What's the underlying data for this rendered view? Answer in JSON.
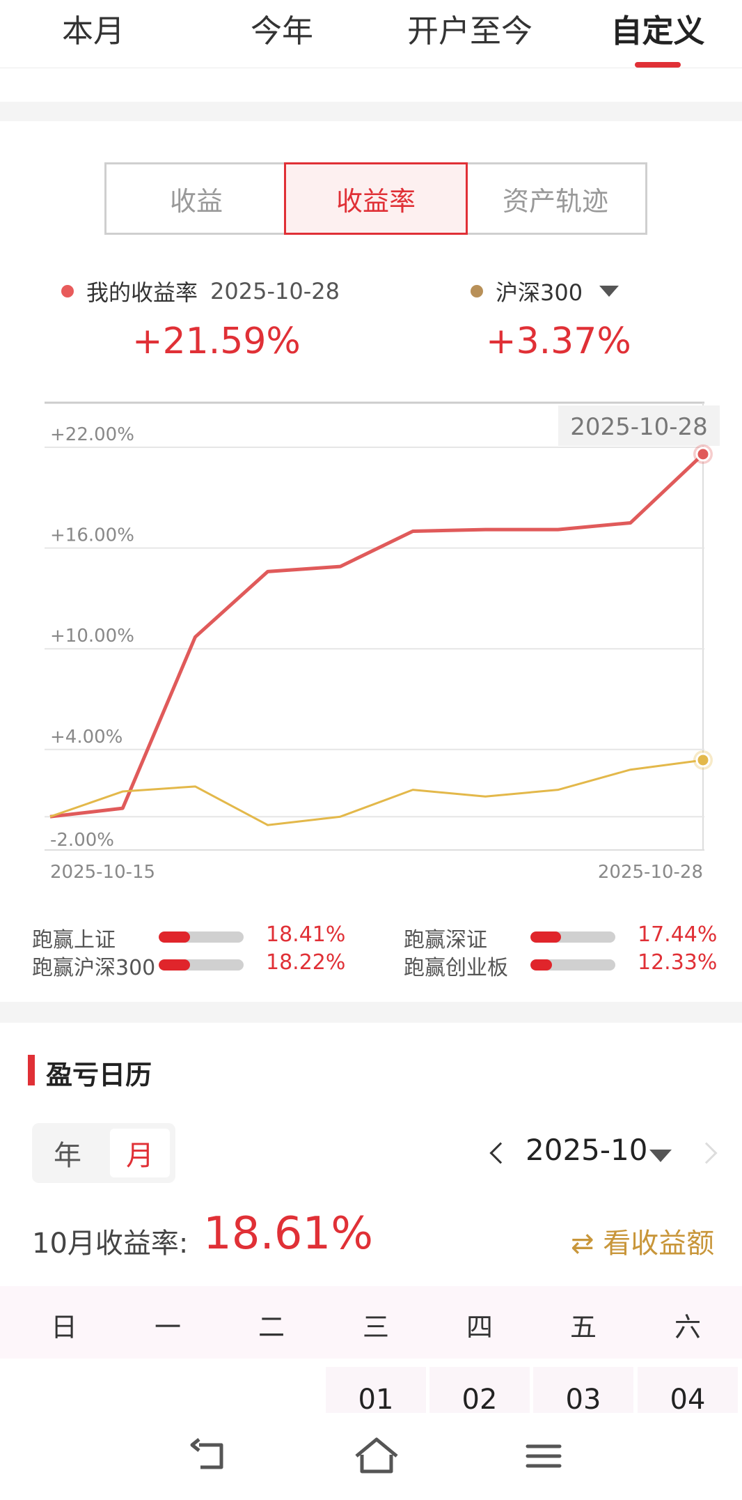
{
  "period_tabs": [
    "本月",
    "今年",
    "开户至今",
    "自定义"
  ],
  "active_period": "自定义",
  "segments": [
    "收益",
    "收益率",
    "资产轨迹"
  ],
  "active_segment": "收益率",
  "legend": {
    "mine": {
      "label": "我的收益率",
      "date": "2025-10-28",
      "value": "+21.59%",
      "color": "#e85b5b"
    },
    "benchmark": {
      "label": "沪深300",
      "value": "+3.37%",
      "color": "#b89058"
    }
  },
  "chart_data": {
    "type": "line",
    "x": [
      "2025-10-15",
      "2025-10-16",
      "2025-10-17",
      "2025-10-20",
      "2025-10-21",
      "2025-10-22",
      "2025-10-23",
      "2025-10-24",
      "2025-10-27",
      "2025-10-28"
    ],
    "xtick_labels": [
      "2025-10-15",
      "2025-10-28"
    ],
    "ytick_labels": [
      "+22.00%",
      "+16.00%",
      "+10.00%",
      "+4.00%",
      "-2.00%"
    ],
    "ylim": [
      -2.0,
      22.0
    ],
    "tooltip_date": "2025-10-28",
    "series": [
      {
        "name": "我的收益率",
        "color": "#e05a5a",
        "values": [
          0.0,
          0.5,
          10.7,
          14.6,
          14.9,
          17.0,
          17.1,
          17.1,
          17.5,
          21.59
        ]
      },
      {
        "name": "沪深300",
        "color": "#e3b84a",
        "values": [
          0.0,
          1.5,
          1.8,
          -0.5,
          0.0,
          1.6,
          1.2,
          1.6,
          2.8,
          3.37
        ]
      }
    ]
  },
  "beat": [
    {
      "label": "跑赢上证",
      "value": "18.41%",
      "fill": 0.37
    },
    {
      "label": "跑赢深证",
      "value": "17.44%",
      "fill": 0.36
    },
    {
      "label": "跑赢沪深300",
      "value": "18.22%",
      "fill": 0.37
    },
    {
      "label": "跑赢创业板",
      "value": "12.33%",
      "fill": 0.25
    }
  ],
  "calendar": {
    "title": "盈亏日历",
    "toggle": [
      "年",
      "月"
    ],
    "active_toggle": "月",
    "month": "2025-10",
    "rate_label": "10月收益率:",
    "rate_value": "18.61%",
    "view_amount": "看收益额",
    "view_amount_icon": "swap-icon",
    "weekdays": [
      "日",
      "一",
      "二",
      "三",
      "四",
      "五",
      "六"
    ],
    "first_week_days": [
      "01",
      "02",
      "03",
      "04"
    ]
  },
  "bottom_nav": [
    "back-icon",
    "home-icon",
    "menu-icon"
  ]
}
